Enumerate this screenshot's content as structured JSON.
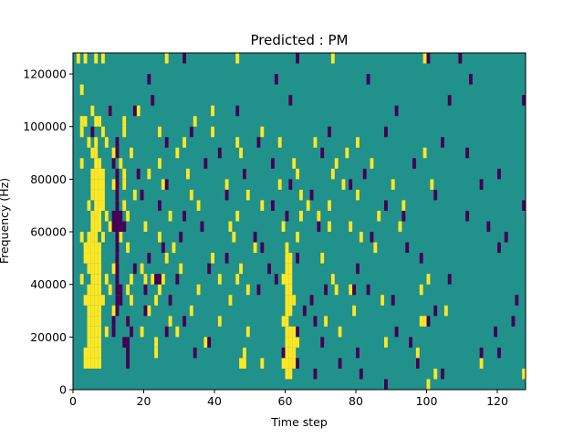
{
  "chart_data": {
    "type": "heatmap",
    "title": "Predicted : PM",
    "xlabel": "Time step",
    "ylabel": "Frequency (Hz)",
    "xlim": [
      0,
      128
    ],
    "ylim": [
      0,
      128000
    ],
    "x_ticks": [
      0,
      20,
      40,
      60,
      80,
      100,
      120
    ],
    "x_tick_labels": [
      "0",
      "20",
      "40",
      "60",
      "80",
      "100",
      "120"
    ],
    "y_ticks": [
      0,
      20000,
      40000,
      60000,
      80000,
      100000,
      120000
    ],
    "y_tick_labels": [
      "0",
      "20000",
      "40000",
      "60000",
      "80000",
      "100000",
      "120000"
    ],
    "grid": false,
    "legend": "none",
    "colors": {
      "background_class": "#21918c",
      "high_class": "#fde725",
      "low_class": "#440154"
    },
    "cell_size": {
      "time_steps": 1,
      "frequency_hz": 4000
    },
    "high_cells": [
      [
        1,
        124000
      ],
      [
        3,
        124000
      ],
      [
        6,
        124000
      ],
      [
        8,
        124000
      ],
      [
        26,
        124000
      ],
      [
        46,
        124000
      ],
      [
        73,
        124000
      ],
      [
        99,
        124000
      ],
      [
        2,
        112000
      ],
      [
        5,
        104000
      ],
      [
        10,
        104000
      ],
      [
        18,
        104000
      ],
      [
        39,
        104000
      ],
      [
        2,
        100000
      ],
      [
        3,
        100000
      ],
      [
        6,
        100000
      ],
      [
        7,
        100000
      ],
      [
        14,
        100000
      ],
      [
        34,
        100000
      ],
      [
        2,
        96000
      ],
      [
        8,
        96000
      ],
      [
        14,
        96000
      ],
      [
        24,
        96000
      ],
      [
        39,
        96000
      ],
      [
        53,
        96000
      ],
      [
        4,
        92000
      ],
      [
        6,
        92000
      ],
      [
        9,
        92000
      ],
      [
        31,
        92000
      ],
      [
        46,
        92000
      ],
      [
        58,
        92000
      ],
      [
        68,
        92000
      ],
      [
        80,
        92000
      ],
      [
        5,
        88000
      ],
      [
        6,
        88000
      ],
      [
        11,
        88000
      ],
      [
        16,
        88000
      ],
      [
        29,
        88000
      ],
      [
        47,
        88000
      ],
      [
        77,
        88000
      ],
      [
        99,
        88000
      ],
      [
        2,
        84000
      ],
      [
        6,
        84000
      ],
      [
        7,
        84000
      ],
      [
        13,
        84000
      ],
      [
        24,
        84000
      ],
      [
        62,
        84000
      ],
      [
        74,
        84000
      ],
      [
        84,
        84000
      ],
      [
        5,
        80000
      ],
      [
        6,
        80000
      ],
      [
        7,
        80000
      ],
      [
        8,
        80000
      ],
      [
        14,
        80000
      ],
      [
        21,
        80000
      ],
      [
        32,
        80000
      ],
      [
        48,
        80000
      ],
      [
        63,
        80000
      ],
      [
        73,
        80000
      ],
      [
        5,
        76000
      ],
      [
        6,
        76000
      ],
      [
        7,
        76000
      ],
      [
        8,
        76000
      ],
      [
        11,
        76000
      ],
      [
        14,
        76000
      ],
      [
        25,
        76000
      ],
      [
        43,
        76000
      ],
      [
        58,
        76000
      ],
      [
        76,
        76000
      ],
      [
        90,
        76000
      ],
      [
        101,
        76000
      ],
      [
        5,
        72000
      ],
      [
        6,
        72000
      ],
      [
        7,
        72000
      ],
      [
        8,
        72000
      ],
      [
        12,
        72000
      ],
      [
        17,
        72000
      ],
      [
        33,
        72000
      ],
      [
        49,
        72000
      ],
      [
        64,
        72000
      ],
      [
        80,
        72000
      ],
      [
        4,
        68000
      ],
      [
        6,
        68000
      ],
      [
        7,
        68000
      ],
      [
        8,
        68000
      ],
      [
        14,
        68000
      ],
      [
        35,
        68000
      ],
      [
        53,
        68000
      ],
      [
        66,
        68000
      ],
      [
        72,
        68000
      ],
      [
        93,
        68000
      ],
      [
        5,
        64000
      ],
      [
        6,
        64000
      ],
      [
        7,
        64000
      ],
      [
        9,
        64000
      ],
      [
        15,
        64000
      ],
      [
        27,
        64000
      ],
      [
        46,
        64000
      ],
      [
        64,
        64000
      ],
      [
        69,
        64000
      ],
      [
        86,
        64000
      ],
      [
        5,
        60000
      ],
      [
        6,
        60000
      ],
      [
        7,
        60000
      ],
      [
        10,
        60000
      ],
      [
        20,
        60000
      ],
      [
        44,
        60000
      ],
      [
        59,
        60000
      ],
      [
        72,
        60000
      ],
      [
        78,
        60000
      ],
      [
        92,
        60000
      ],
      [
        2,
        56000
      ],
      [
        4,
        56000
      ],
      [
        5,
        56000
      ],
      [
        6,
        56000
      ],
      [
        8,
        56000
      ],
      [
        13,
        56000
      ],
      [
        24,
        56000
      ],
      [
        45,
        56000
      ],
      [
        63,
        56000
      ],
      [
        81,
        56000
      ],
      [
        3,
        52000
      ],
      [
        4,
        52000
      ],
      [
        5,
        52000
      ],
      [
        6,
        52000
      ],
      [
        7,
        52000
      ],
      [
        15,
        52000
      ],
      [
        28,
        52000
      ],
      [
        51,
        52000
      ],
      [
        60,
        52000
      ],
      [
        85,
        52000
      ],
      [
        3,
        48000
      ],
      [
        4,
        48000
      ],
      [
        5,
        48000
      ],
      [
        6,
        48000
      ],
      [
        7,
        48000
      ],
      [
        12,
        48000
      ],
      [
        26,
        48000
      ],
      [
        39,
        48000
      ],
      [
        60,
        48000
      ],
      [
        61,
        48000
      ],
      [
        70,
        48000
      ],
      [
        4,
        44000
      ],
      [
        5,
        44000
      ],
      [
        6,
        44000
      ],
      [
        7,
        44000
      ],
      [
        11,
        44000
      ],
      [
        19,
        44000
      ],
      [
        30,
        44000
      ],
      [
        47,
        44000
      ],
      [
        60,
        44000
      ],
      [
        61,
        44000
      ],
      [
        2,
        40000
      ],
      [
        5,
        40000
      ],
      [
        6,
        40000
      ],
      [
        7,
        40000
      ],
      [
        9,
        40000
      ],
      [
        16,
        40000
      ],
      [
        20,
        40000
      ],
      [
        22,
        40000
      ],
      [
        25,
        40000
      ],
      [
        41,
        40000
      ],
      [
        46,
        40000
      ],
      [
        59,
        40000
      ],
      [
        60,
        40000
      ],
      [
        61,
        40000
      ],
      [
        73,
        40000
      ],
      [
        100,
        40000
      ],
      [
        4,
        36000
      ],
      [
        5,
        36000
      ],
      [
        6,
        36000
      ],
      [
        7,
        36000
      ],
      [
        10,
        36000
      ],
      [
        15,
        36000
      ],
      [
        24,
        36000
      ],
      [
        35,
        36000
      ],
      [
        49,
        36000
      ],
      [
        60,
        36000
      ],
      [
        61,
        36000
      ],
      [
        74,
        36000
      ],
      [
        78,
        36000
      ],
      [
        98,
        36000
      ],
      [
        3,
        32000
      ],
      [
        4,
        32000
      ],
      [
        5,
        32000
      ],
      [
        6,
        32000
      ],
      [
        7,
        32000
      ],
      [
        8,
        32000
      ],
      [
        16,
        32000
      ],
      [
        23,
        32000
      ],
      [
        44,
        32000
      ],
      [
        60,
        32000
      ],
      [
        61,
        32000
      ],
      [
        62,
        32000
      ],
      [
        87,
        32000
      ],
      [
        4,
        28000
      ],
      [
        5,
        28000
      ],
      [
        6,
        28000
      ],
      [
        7,
        28000
      ],
      [
        11,
        28000
      ],
      [
        21,
        28000
      ],
      [
        33,
        28000
      ],
      [
        60,
        28000
      ],
      [
        61,
        28000
      ],
      [
        79,
        28000
      ],
      [
        105,
        28000
      ],
      [
        4,
        24000
      ],
      [
        5,
        24000
      ],
      [
        6,
        24000
      ],
      [
        7,
        24000
      ],
      [
        15,
        24000
      ],
      [
        27,
        24000
      ],
      [
        41,
        24000
      ],
      [
        59,
        24000
      ],
      [
        60,
        24000
      ],
      [
        71,
        24000
      ],
      [
        98,
        24000
      ],
      [
        99,
        24000
      ],
      [
        4,
        20000
      ],
      [
        5,
        20000
      ],
      [
        6,
        20000
      ],
      [
        7,
        20000
      ],
      [
        9,
        20000
      ],
      [
        19,
        20000
      ],
      [
        29,
        20000
      ],
      [
        49,
        20000
      ],
      [
        60,
        20000
      ],
      [
        61,
        20000
      ],
      [
        62,
        20000
      ],
      [
        75,
        20000
      ],
      [
        4,
        16000
      ],
      [
        5,
        16000
      ],
      [
        6,
        16000
      ],
      [
        7,
        16000
      ],
      [
        23,
        16000
      ],
      [
        37,
        16000
      ],
      [
        60,
        16000
      ],
      [
        61,
        16000
      ],
      [
        62,
        16000
      ],
      [
        63,
        16000
      ],
      [
        88,
        16000
      ],
      [
        3,
        12000
      ],
      [
        4,
        12000
      ],
      [
        5,
        12000
      ],
      [
        6,
        12000
      ],
      [
        7,
        12000
      ],
      [
        23,
        12000
      ],
      [
        48,
        12000
      ],
      [
        60,
        12000
      ],
      [
        61,
        12000
      ],
      [
        62,
        12000
      ],
      [
        97,
        12000
      ],
      [
        3,
        8000
      ],
      [
        4,
        8000
      ],
      [
        5,
        8000
      ],
      [
        6,
        8000
      ],
      [
        7,
        8000
      ],
      [
        47,
        8000
      ],
      [
        48,
        8000
      ],
      [
        53,
        8000
      ],
      [
        59,
        8000
      ],
      [
        60,
        8000
      ],
      [
        61,
        8000
      ],
      [
        62,
        8000
      ],
      [
        97,
        8000
      ],
      [
        115,
        8000
      ],
      [
        60,
        4000
      ],
      [
        61,
        4000
      ],
      [
        102,
        4000
      ],
      [
        127,
        4000
      ],
      [
        100,
        0
      ]
    ],
    "low_cells": [
      [
        31,
        124000
      ],
      [
        63,
        124000
      ],
      [
        100,
        124000
      ],
      [
        109,
        124000
      ],
      [
        21,
        116000
      ],
      [
        57,
        116000
      ],
      [
        83,
        116000
      ],
      [
        112,
        116000
      ],
      [
        22,
        108000
      ],
      [
        61,
        108000
      ],
      [
        106,
        108000
      ],
      [
        127,
        108000
      ],
      [
        10,
        104000
      ],
      [
        17,
        104000
      ],
      [
        46,
        104000
      ],
      [
        91,
        104000
      ],
      [
        5,
        96000
      ],
      [
        33,
        96000
      ],
      [
        72,
        96000
      ],
      [
        88,
        96000
      ],
      [
        12,
        92000
      ],
      [
        26,
        92000
      ],
      [
        52,
        92000
      ],
      [
        104,
        92000
      ],
      [
        12,
        88000
      ],
      [
        41,
        88000
      ],
      [
        70,
        88000
      ],
      [
        111,
        88000
      ],
      [
        11,
        84000
      ],
      [
        37,
        84000
      ],
      [
        56,
        84000
      ],
      [
        96,
        84000
      ],
      [
        12,
        80000
      ],
      [
        18,
        80000
      ],
      [
        48,
        80000
      ],
      [
        82,
        80000
      ],
      [
        120,
        80000
      ],
      [
        12,
        76000
      ],
      [
        26,
        76000
      ],
      [
        61,
        76000
      ],
      [
        78,
        76000
      ],
      [
        115,
        76000
      ],
      [
        12,
        72000
      ],
      [
        19,
        72000
      ],
      [
        43,
        72000
      ],
      [
        67,
        72000
      ],
      [
        102,
        72000
      ],
      [
        12,
        68000
      ],
      [
        24,
        68000
      ],
      [
        56,
        68000
      ],
      [
        88,
        68000
      ],
      [
        127,
        68000
      ],
      [
        11,
        64000
      ],
      [
        12,
        64000
      ],
      [
        13,
        64000
      ],
      [
        31,
        64000
      ],
      [
        60,
        64000
      ],
      [
        93,
        64000
      ],
      [
        111,
        64000
      ],
      [
        11,
        60000
      ],
      [
        12,
        60000
      ],
      [
        13,
        60000
      ],
      [
        14,
        60000
      ],
      [
        36,
        60000
      ],
      [
        69,
        60000
      ],
      [
        117,
        60000
      ],
      [
        12,
        56000
      ],
      [
        30,
        56000
      ],
      [
        51,
        56000
      ],
      [
        84,
        56000
      ],
      [
        122,
        56000
      ],
      [
        12,
        52000
      ],
      [
        25,
        52000
      ],
      [
        53,
        52000
      ],
      [
        94,
        52000
      ],
      [
        120,
        52000
      ],
      [
        12,
        48000
      ],
      [
        21,
        48000
      ],
      [
        43,
        48000
      ],
      [
        63,
        48000
      ],
      [
        98,
        48000
      ],
      [
        12,
        44000
      ],
      [
        17,
        44000
      ],
      [
        38,
        44000
      ],
      [
        55,
        44000
      ],
      [
        80,
        44000
      ],
      [
        12,
        40000
      ],
      [
        23,
        40000
      ],
      [
        24,
        40000
      ],
      [
        29,
        40000
      ],
      [
        57,
        40000
      ],
      [
        106,
        40000
      ],
      [
        12,
        36000
      ],
      [
        13,
        36000
      ],
      [
        20,
        36000
      ],
      [
        52,
        36000
      ],
      [
        71,
        36000
      ],
      [
        79,
        36000
      ],
      [
        83,
        36000
      ],
      [
        12,
        32000
      ],
      [
        13,
        32000
      ],
      [
        27,
        32000
      ],
      [
        67,
        32000
      ],
      [
        90,
        32000
      ],
      [
        125,
        32000
      ],
      [
        12,
        28000
      ],
      [
        20,
        28000
      ],
      [
        65,
        28000
      ],
      [
        102,
        28000
      ],
      [
        11,
        24000
      ],
      [
        15,
        24000
      ],
      [
        31,
        24000
      ],
      [
        68,
        24000
      ],
      [
        100,
        24000
      ],
      [
        124,
        24000
      ],
      [
        11,
        20000
      ],
      [
        16,
        20000
      ],
      [
        26,
        20000
      ],
      [
        63,
        20000
      ],
      [
        91,
        20000
      ],
      [
        119,
        20000
      ],
      [
        14,
        16000
      ],
      [
        15,
        16000
      ],
      [
        38,
        16000
      ],
      [
        70,
        16000
      ],
      [
        95,
        16000
      ],
      [
        15,
        12000
      ],
      [
        34,
        12000
      ],
      [
        59,
        12000
      ],
      [
        80,
        12000
      ],
      [
        115,
        12000
      ],
      [
        120,
        12000
      ],
      [
        15,
        8000
      ],
      [
        63,
        8000
      ],
      [
        75,
        8000
      ],
      [
        97,
        8000
      ],
      [
        68,
        4000
      ],
      [
        81,
        4000
      ],
      [
        104,
        4000
      ],
      [
        88,
        0
      ]
    ]
  }
}
